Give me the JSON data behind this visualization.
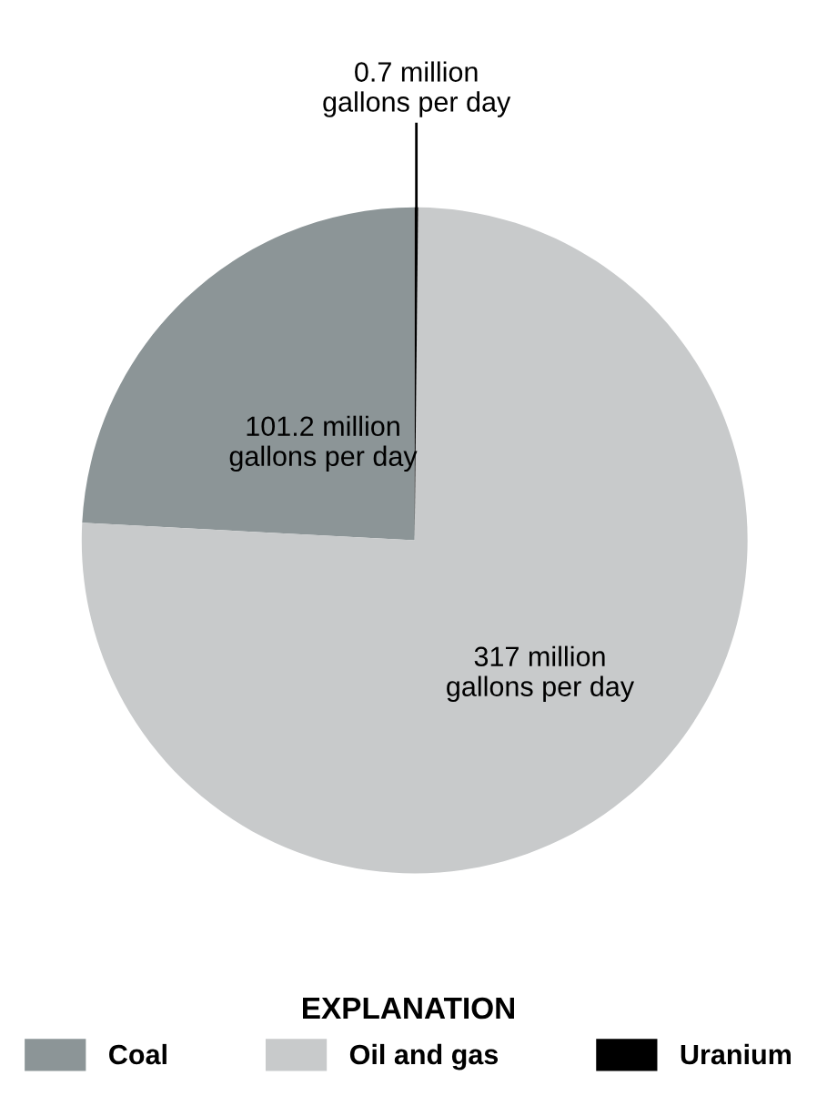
{
  "chart_data": {
    "type": "pie",
    "categories": [
      "Coal",
      "Oil and gas",
      "Uranium"
    ],
    "values": [
      101.2,
      317,
      0.7
    ],
    "colors": [
      "#8c9597",
      "#c8cacb",
      "#000000"
    ],
    "value_labels": [
      "101.2 million\ngallons per day",
      "317 million\ngallons per day",
      "0.7 million\ngallons per day"
    ],
    "legend_title": "EXPLANATION",
    "legend": "bottom"
  }
}
